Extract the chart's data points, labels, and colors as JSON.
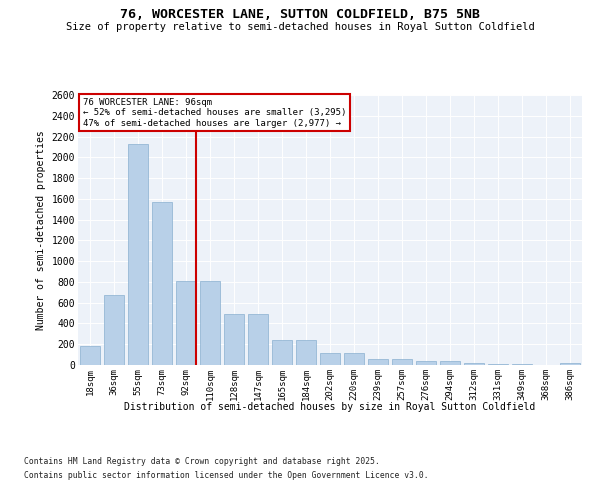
{
  "title": "76, WORCESTER LANE, SUTTON COLDFIELD, B75 5NB",
  "subtitle": "Size of property relative to semi-detached houses in Royal Sutton Coldfield",
  "xlabel": "Distribution of semi-detached houses by size in Royal Sutton Coldfield",
  "ylabel": "Number of semi-detached properties",
  "categories": [
    "18sqm",
    "36sqm",
    "55sqm",
    "73sqm",
    "92sqm",
    "110sqm",
    "128sqm",
    "147sqm",
    "165sqm",
    "184sqm",
    "202sqm",
    "220sqm",
    "239sqm",
    "257sqm",
    "276sqm",
    "294sqm",
    "312sqm",
    "331sqm",
    "349sqm",
    "368sqm",
    "386sqm"
  ],
  "values": [
    180,
    670,
    2130,
    1570,
    810,
    810,
    490,
    490,
    240,
    240,
    120,
    120,
    60,
    60,
    40,
    40,
    20,
    10,
    10,
    0,
    20
  ],
  "bar_color": "#b8d0e8",
  "bar_edge_color": "#8ab0d0",
  "vline_color": "#cc0000",
  "vline_position": 4.43,
  "annotation_title": "76 WORCESTER LANE: 96sqm",
  "annotation_line1": "← 52% of semi-detached houses are smaller (3,295)",
  "annotation_line2": "47% of semi-detached houses are larger (2,977) →",
  "annotation_box_edgecolor": "#cc0000",
  "ylim_max": 2600,
  "ytick_step": 200,
  "bg_color": "#edf2f9",
  "footer1": "Contains HM Land Registry data © Crown copyright and database right 2025.",
  "footer2": "Contains public sector information licensed under the Open Government Licence v3.0."
}
